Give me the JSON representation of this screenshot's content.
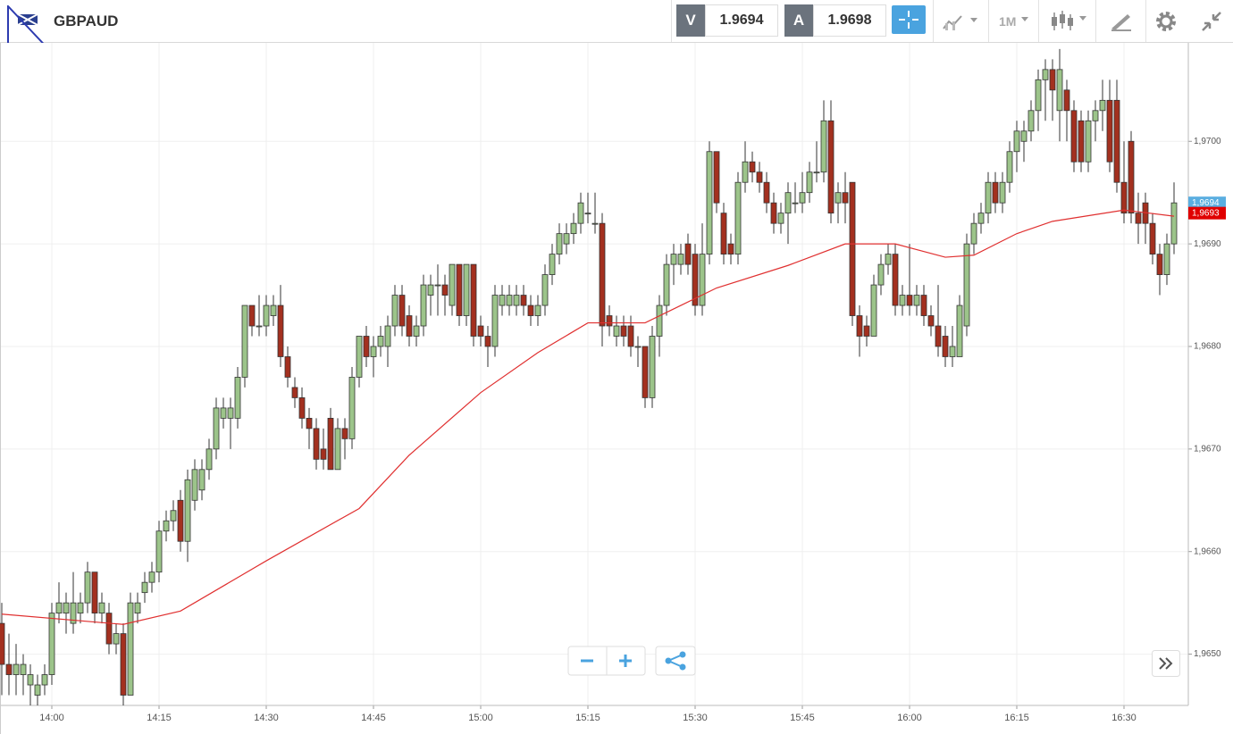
{
  "toolbar": {
    "symbol": "GBPAUD",
    "sell_label": "V",
    "sell_price": "1.9694",
    "buy_label": "A",
    "buy_price": "1.9698",
    "timeframe": "1M"
  },
  "chart_data": {
    "type": "candlestick",
    "up_color": "#9cc48a",
    "down_color": "#a3301f",
    "grid": true,
    "xlim": [
      -0.25,
      166
    ],
    "xticks": [
      {
        "value": 7,
        "label": "14:00"
      },
      {
        "value": 22,
        "label": "14:15"
      },
      {
        "value": 37,
        "label": "14:30"
      },
      {
        "value": 52,
        "label": "14:45"
      },
      {
        "value": 67,
        "label": "15:00"
      },
      {
        "value": 82,
        "label": "15:15"
      },
      {
        "value": 97,
        "label": "15:30"
      },
      {
        "value": 112,
        "label": "15:45"
      },
      {
        "value": 127,
        "label": "16:00"
      },
      {
        "value": 142,
        "label": "16:15"
      },
      {
        "value": 157,
        "label": "16:30"
      }
    ],
    "ylim": [
      1.9645,
      1.97096
    ],
    "yticks": [
      {
        "value": 1.965,
        "label": "1,9650"
      },
      {
        "value": 1.966,
        "label": "1,9660"
      },
      {
        "value": 1.967,
        "label": "1,9670"
      },
      {
        "value": 1.968,
        "label": "1,9680"
      },
      {
        "value": 1.969,
        "label": "1,9690"
      },
      {
        "value": 1.97,
        "label": "1,9700"
      }
    ],
    "ohlc": [
      [
        1.9653,
        1.9655,
        1.9646,
        1.9649
      ],
      [
        1.9649,
        1.9652,
        1.9646,
        1.9648
      ],
      [
        1.9648,
        1.9651,
        1.9646,
        1.9649
      ],
      [
        1.9648,
        1.965,
        1.9646,
        1.9649
      ],
      [
        1.9647,
        1.9649,
        1.9645,
        1.9648
      ],
      [
        1.9646,
        1.9648,
        1.9645,
        1.9647
      ],
      [
        1.9647,
        1.9649,
        1.9646,
        1.9648
      ],
      [
        1.9648,
        1.9655,
        1.9647,
        1.9654
      ],
      [
        1.9654,
        1.9657,
        1.9653,
        1.9655
      ],
      [
        1.9654,
        1.9656,
        1.9652,
        1.9655
      ],
      [
        1.9653,
        1.9658,
        1.9652,
        1.9655
      ],
      [
        1.9654,
        1.9656,
        1.9653,
        1.9655
      ],
      [
        1.9655,
        1.9659,
        1.9654,
        1.9658
      ],
      [
        1.9658,
        1.9658,
        1.9653,
        1.9654
      ],
      [
        1.9654,
        1.9656,
        1.9653,
        1.9655
      ],
      [
        1.9654,
        1.9655,
        1.965,
        1.9651
      ],
      [
        1.9651,
        1.9653,
        1.965,
        1.9652
      ],
      [
        1.9652,
        1.9653,
        1.9645,
        1.9646
      ],
      [
        1.9646,
        1.9656,
        1.9646,
        1.9655
      ],
      [
        1.9654,
        1.9656,
        1.9653,
        1.9655
      ],
      [
        1.9656,
        1.9658,
        1.9655,
        1.9657
      ],
      [
        1.9657,
        1.9659,
        1.9656,
        1.9658
      ],
      [
        1.9658,
        1.9663,
        1.9657,
        1.9662
      ],
      [
        1.9662,
        1.9664,
        1.9661,
        1.9663
      ],
      [
        1.9663,
        1.9665,
        1.9662,
        1.9664
      ],
      [
        1.9665,
        1.9666,
        1.966,
        1.9661
      ],
      [
        1.9661,
        1.9668,
        1.9659,
        1.9667
      ],
      [
        1.9665,
        1.9669,
        1.9664,
        1.9668
      ],
      [
        1.9666,
        1.9669,
        1.9665,
        1.9668
      ],
      [
        1.9668,
        1.9671,
        1.9667,
        1.967
      ],
      [
        1.967,
        1.9675,
        1.9669,
        1.9674
      ],
      [
        1.9673,
        1.9675,
        1.9672,
        1.9674
      ],
      [
        1.9673,
        1.9675,
        1.967,
        1.9674
      ],
      [
        1.9673,
        1.9678,
        1.9672,
        1.9677
      ],
      [
        1.9677,
        1.9684,
        1.9676,
        1.9684
      ],
      [
        1.9684,
        1.9684,
        1.9681,
        1.9682
      ],
      [
        1.9682,
        1.9685,
        1.9681,
        1.9682
      ],
      [
        1.9682,
        1.9685,
        1.9681,
        1.9684
      ],
      [
        1.9683,
        1.9685,
        1.9682,
        1.9684
      ],
      [
        1.9684,
        1.9686,
        1.9678,
        1.9679
      ],
      [
        1.9679,
        1.968,
        1.9676,
        1.9677
      ],
      [
        1.9676,
        1.9677,
        1.9674,
        1.9675
      ],
      [
        1.9675,
        1.9676,
        1.9672,
        1.9673
      ],
      [
        1.9673,
        1.9674,
        1.967,
        1.9672
      ],
      [
        1.9672,
        1.9673,
        1.9668,
        1.9669
      ],
      [
        1.967,
        1.9672,
        1.9668,
        1.9669
      ],
      [
        1.9673,
        1.9674,
        1.9668,
        1.9668
      ],
      [
        1.9668,
        1.9673,
        1.9668,
        1.9672
      ],
      [
        1.9672,
        1.9673,
        1.9669,
        1.9671
      ],
      [
        1.9671,
        1.9678,
        1.967,
        1.9677
      ],
      [
        1.9677,
        1.9681,
        1.9676,
        1.9681
      ],
      [
        1.9681,
        1.9682,
        1.9678,
        1.9679
      ],
      [
        1.9679,
        1.9681,
        1.9677,
        1.968
      ],
      [
        1.968,
        1.9682,
        1.9679,
        1.9681
      ],
      [
        1.968,
        1.9683,
        1.9678,
        1.9682
      ],
      [
        1.9682,
        1.9686,
        1.9681,
        1.9685
      ],
      [
        1.9685,
        1.9686,
        1.9681,
        1.9682
      ],
      [
        1.9683,
        1.9684,
        1.968,
        1.9681
      ],
      [
        1.9681,
        1.9683,
        1.968,
        1.9682
      ],
      [
        1.9682,
        1.9687,
        1.9681,
        1.9686
      ],
      [
        1.9685,
        1.9687,
        1.9683,
        1.9686
      ],
      [
        1.9686,
        1.9688,
        1.9683,
        1.9686
      ],
      [
        1.9686,
        1.9687,
        1.9683,
        1.9685
      ],
      [
        1.9684,
        1.9688,
        1.9683,
        1.9688
      ],
      [
        1.9688,
        1.9688,
        1.9682,
        1.9683
      ],
      [
        1.9683,
        1.9688,
        1.9682,
        1.9688
      ],
      [
        1.9688,
        1.9688,
        1.968,
        1.9681
      ],
      [
        1.9682,
        1.9683,
        1.968,
        1.9681
      ],
      [
        1.9681,
        1.9682,
        1.9678,
        1.968
      ],
      [
        1.968,
        1.9686,
        1.9679,
        1.9685
      ],
      [
        1.9684,
        1.9686,
        1.9683,
        1.9685
      ],
      [
        1.9684,
        1.9686,
        1.9683,
        1.9685
      ],
      [
        1.9684,
        1.9686,
        1.9683,
        1.9685
      ],
      [
        1.9685,
        1.9686,
        1.9683,
        1.9684
      ],
      [
        1.9684,
        1.9685,
        1.9682,
        1.9683
      ],
      [
        1.9683,
        1.9685,
        1.9682,
        1.9684
      ],
      [
        1.9684,
        1.9688,
        1.9683,
        1.9687
      ],
      [
        1.9687,
        1.969,
        1.9686,
        1.9689
      ],
      [
        1.9689,
        1.9692,
        1.9688,
        1.9691
      ],
      [
        1.969,
        1.9692,
        1.9689,
        1.9691
      ],
      [
        1.9691,
        1.9693,
        1.969,
        1.9692
      ],
      [
        1.9692,
        1.9695,
        1.9691,
        1.9694
      ],
      [
        1.9693,
        1.9695,
        1.9692,
        1.9693
      ],
      [
        1.9692,
        1.9695,
        1.9691,
        1.9692
      ],
      [
        1.9692,
        1.9693,
        1.968,
        1.9682
      ],
      [
        1.9683,
        1.9684,
        1.9681,
        1.9682
      ],
      [
        1.9681,
        1.9683,
        1.968,
        1.9682
      ],
      [
        1.9682,
        1.9683,
        1.968,
        1.9681
      ],
      [
        1.9682,
        1.9683,
        1.9679,
        1.968
      ],
      [
        1.968,
        1.9681,
        1.9678,
        1.968
      ],
      [
        1.968,
        1.968,
        1.9674,
        1.9675
      ],
      [
        1.9675,
        1.9682,
        1.9674,
        1.9681
      ],
      [
        1.9681,
        1.9685,
        1.9679,
        1.9684
      ],
      [
        1.9684,
        1.9689,
        1.9683,
        1.9688
      ],
      [
        1.9688,
        1.969,
        1.9686,
        1.9689
      ],
      [
        1.9688,
        1.969,
        1.9687,
        1.9689
      ],
      [
        1.969,
        1.9691,
        1.9687,
        1.9688
      ],
      [
        1.9689,
        1.969,
        1.9683,
        1.9684
      ],
      [
        1.9684,
        1.9692,
        1.9683,
        1.9689
      ],
      [
        1.9689,
        1.97,
        1.9688,
        1.9699
      ],
      [
        1.9699,
        1.9699,
        1.9693,
        1.9694
      ],
      [
        1.9693,
        1.9694,
        1.9688,
        1.9689
      ],
      [
        1.969,
        1.9691,
        1.9688,
        1.9689
      ],
      [
        1.9689,
        1.9697,
        1.9688,
        1.9696
      ],
      [
        1.9696,
        1.97,
        1.9695,
        1.9698
      ],
      [
        1.9698,
        1.9699,
        1.9696,
        1.9697
      ],
      [
        1.9697,
        1.9698,
        1.9695,
        1.9696
      ],
      [
        1.9696,
        1.9697,
        1.9693,
        1.9694
      ],
      [
        1.9694,
        1.9695,
        1.9691,
        1.9692
      ],
      [
        1.9692,
        1.9694,
        1.9691,
        1.9693
      ],
      [
        1.9693,
        1.9696,
        1.969,
        1.9695
      ],
      [
        1.9694,
        1.9696,
        1.9693,
        1.9694
      ],
      [
        1.9694,
        1.9697,
        1.9693,
        1.9695
      ],
      [
        1.9695,
        1.9698,
        1.9694,
        1.9697
      ],
      [
        1.9697,
        1.97,
        1.9696,
        1.9697
      ],
      [
        1.9697,
        1.9704,
        1.9696,
        1.9702
      ],
      [
        1.9702,
        1.9704,
        1.9692,
        1.9693
      ],
      [
        1.9694,
        1.9696,
        1.9692,
        1.9695
      ],
      [
        1.9695,
        1.9697,
        1.9692,
        1.9694
      ],
      [
        1.9696,
        1.9696,
        1.9682,
        1.9683
      ],
      [
        1.9683,
        1.9684,
        1.9679,
        1.9681
      ],
      [
        1.9682,
        1.9683,
        1.968,
        1.9681
      ],
      [
        1.9681,
        1.9687,
        1.9681,
        1.9686
      ],
      [
        1.9686,
        1.9689,
        1.9685,
        1.9688
      ],
      [
        1.9688,
        1.969,
        1.9687,
        1.9689
      ],
      [
        1.9689,
        1.969,
        1.9683,
        1.9684
      ],
      [
        1.9684,
        1.9686,
        1.9683,
        1.9685
      ],
      [
        1.9685,
        1.969,
        1.9683,
        1.9684
      ],
      [
        1.9684,
        1.9686,
        1.9683,
        1.9685
      ],
      [
        1.9685,
        1.9686,
        1.9682,
        1.9683
      ],
      [
        1.9683,
        1.9684,
        1.9681,
        1.9682
      ],
      [
        1.9682,
        1.9686,
        1.9679,
        1.968
      ],
      [
        1.9681,
        1.9682,
        1.9678,
        1.9679
      ],
      [
        1.9679,
        1.9682,
        1.9678,
        1.968
      ],
      [
        1.9679,
        1.9685,
        1.9679,
        1.9684
      ],
      [
        1.9682,
        1.9691,
        1.9681,
        1.969
      ],
      [
        1.969,
        1.9693,
        1.9689,
        1.9692
      ],
      [
        1.9692,
        1.9694,
        1.9691,
        1.9693
      ],
      [
        1.9693,
        1.9697,
        1.9692,
        1.9696
      ],
      [
        1.9696,
        1.9697,
        1.9693,
        1.9694
      ],
      [
        1.9694,
        1.9697,
        1.9693,
        1.9696
      ],
      [
        1.9696,
        1.97,
        1.9695,
        1.9699
      ],
      [
        1.9699,
        1.9702,
        1.9697,
        1.9701
      ],
      [
        1.97,
        1.9702,
        1.9698,
        1.9701
      ],
      [
        1.9701,
        1.9704,
        1.97,
        1.9703
      ],
      [
        1.9703,
        1.9707,
        1.9701,
        1.9706
      ],
      [
        1.9706,
        1.9708,
        1.9702,
        1.9707
      ],
      [
        1.9707,
        1.9708,
        1.9702,
        1.9705
      ],
      [
        1.9703,
        1.9709,
        1.97,
        1.9707
      ],
      [
        1.9705,
        1.9706,
        1.97,
        1.9703
      ],
      [
        1.9703,
        1.9704,
        1.9697,
        1.9698
      ],
      [
        1.9702,
        1.9703,
        1.9697,
        1.9698
      ],
      [
        1.9698,
        1.9703,
        1.9697,
        1.9702
      ],
      [
        1.9702,
        1.9704,
        1.97,
        1.9703
      ],
      [
        1.9703,
        1.9706,
        1.9701,
        1.9704
      ],
      [
        1.9704,
        1.9706,
        1.9697,
        1.9698
      ],
      [
        1.9704,
        1.9706,
        1.9695,
        1.9696
      ],
      [
        1.9696,
        1.97,
        1.9692,
        1.9693
      ],
      [
        1.97,
        1.9701,
        1.9692,
        1.9693
      ],
      [
        1.9693,
        1.9695,
        1.969,
        1.9692
      ],
      [
        1.9694,
        1.9695,
        1.969,
        1.9692
      ],
      [
        1.9692,
        1.9693,
        1.9688,
        1.9689
      ],
      [
        1.9689,
        1.969,
        1.9685,
        1.9687
      ],
      [
        1.9687,
        1.9691,
        1.9686,
        1.969
      ],
      [
        1.969,
        1.9696,
        1.9689,
        1.9694
      ]
    ],
    "ma": {
      "color": "#e03030",
      "x": [
        0,
        17,
        25,
        37,
        50,
        57,
        67,
        75,
        82,
        90,
        100,
        110,
        118,
        125,
        132,
        136,
        142,
        147,
        157,
        164
      ],
      "values": [
        1.96539,
        1.96529,
        1.96542,
        1.96591,
        1.96642,
        1.96694,
        1.96755,
        1.96794,
        1.96823,
        1.96823,
        1.96857,
        1.96879,
        1.969,
        1.969,
        1.96887,
        1.96889,
        1.9691,
        1.96922,
        1.96933,
        1.96927
      ]
    },
    "price_markers": [
      {
        "value": 1.9694,
        "label": "1,9694",
        "color": "#5aaee0"
      },
      {
        "value": 1.9693,
        "label": "1,9693",
        "color": "#e00000"
      }
    ]
  }
}
